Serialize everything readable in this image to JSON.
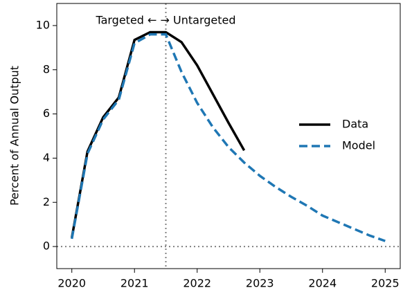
{
  "chart_data": {
    "type": "line",
    "ylabel": "Percent of Annual Output",
    "annotation": "Targeted ← → Untargeted",
    "vline": 2021.5,
    "hline": 0,
    "xlim": [
      2019.76,
      2025.24
    ],
    "ylim": [
      -1,
      11
    ],
    "xticks": [
      2020,
      2021,
      2022,
      2023,
      2024,
      2025
    ],
    "yticks": [
      0,
      2,
      4,
      6,
      8,
      10
    ],
    "grid": false,
    "legend": "center right",
    "series": [
      {
        "name": "Data",
        "color": "#000000",
        "dash": false,
        "x": [
          2020,
          2020.25,
          2020.5,
          2020.75,
          2021,
          2021.25,
          2021.5,
          2021.75,
          2022,
          2022.25,
          2022.5,
          2022.75
        ],
        "values": [
          0.4,
          4.3,
          5.85,
          6.75,
          9.35,
          9.7,
          9.7,
          9.25,
          8.2,
          6.9,
          5.6,
          4.35
        ]
      },
      {
        "name": "Model",
        "color": "#1f77b4",
        "dash": true,
        "x": [
          2020,
          2020.25,
          2020.5,
          2020.75,
          2021,
          2021.25,
          2021.5,
          2021.75,
          2022,
          2022.25,
          2022.5,
          2022.75,
          2023,
          2023.25,
          2023.5,
          2023.75,
          2024,
          2024.25,
          2024.5,
          2024.75,
          2025
        ],
        "values": [
          0.35,
          4.2,
          5.75,
          6.65,
          9.2,
          9.6,
          9.6,
          7.9,
          6.5,
          5.4,
          4.5,
          3.8,
          3.2,
          2.7,
          2.25,
          1.85,
          1.4,
          1.1,
          0.8,
          0.5,
          0.25
        ]
      }
    ]
  }
}
